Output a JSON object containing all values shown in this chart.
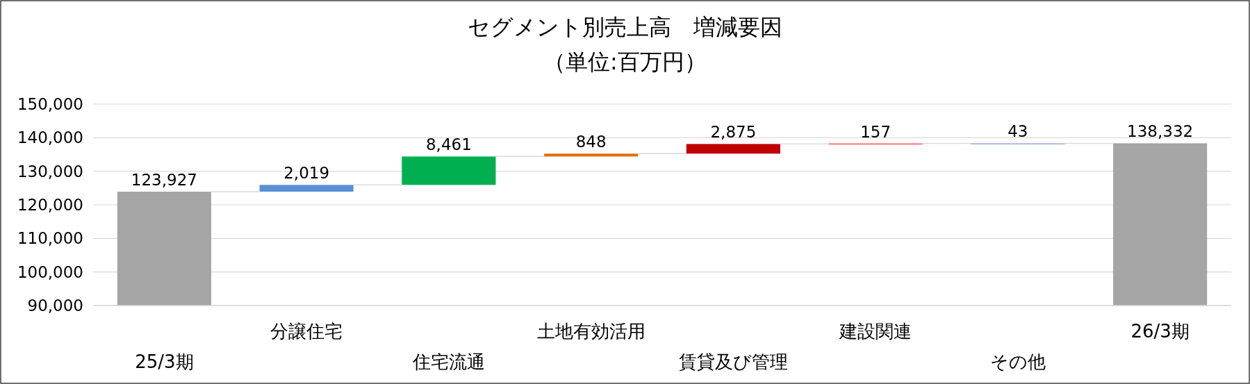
{
  "chart_data": {
    "type": "bar",
    "title": "セグメント別売上高　増減要因",
    "subtitle": "（単位:百万円）",
    "categories": [
      "25/3期",
      "分譲住宅",
      "住宅流通",
      "土地有効活用",
      "賃貸及び管理",
      "建設関連",
      "その他",
      "26/3期"
    ],
    "values": [
      123927,
      2019,
      8461,
      848,
      2875,
      157,
      43,
      138332
    ],
    "base": [
      0,
      123927,
      125946,
      134407,
      135255,
      138130,
      138287,
      0
    ],
    "colors": [
      "#a5a5a5",
      "#5b8fd6",
      "#00b050",
      "#e36c0a",
      "#c00000",
      "#ff5050",
      "#8eaadb",
      "#a5a5a5"
    ],
    "ylim": [
      90000,
      150000
    ],
    "yticks": [
      {
        "value": 90000,
        "label": "90,000"
      },
      {
        "value": 100000,
        "label": "100,000"
      },
      {
        "value": 110000,
        "label": "110,000"
      },
      {
        "value": 120000,
        "label": "120,000"
      },
      {
        "value": 130000,
        "label": "130,000"
      },
      {
        "value": 140000,
        "label": "140,000"
      },
      {
        "value": 150000,
        "label": "150,000"
      }
    ],
    "value_labels": [
      "123,927",
      "2,019",
      "8,461",
      "848",
      "2,875",
      "157",
      "43",
      "138,332"
    ],
    "grid": "y"
  }
}
